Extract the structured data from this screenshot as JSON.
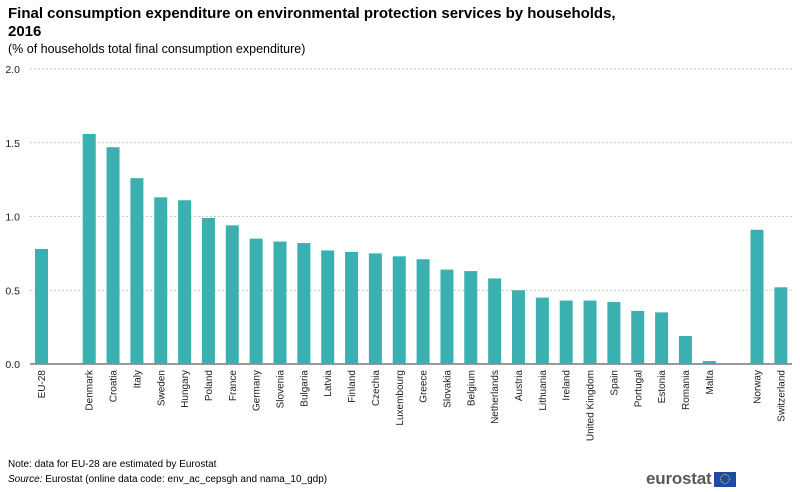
{
  "header": {
    "title": "Final consumption expenditure on environmental protection services by households, 2016",
    "subtitle": "(% of households  total final consumption  expenditure)"
  },
  "footer": {
    "note": "Note: data for EU-28 are estimated by Eurostat",
    "source_label": "Source:",
    "source_text": "Eurostat (online data code: env_ac_cepsgh and nama_10_gdp)"
  },
  "logo": {
    "text": "eurostat"
  },
  "chart_data": {
    "type": "bar",
    "title": "Final consumption expenditure on environmental protection services by households, 2016",
    "subtitle": "(% of households  total final consumption  expenditure)",
    "xlabel": "",
    "ylabel": "",
    "ylim": [
      0,
      2.0
    ],
    "yticks": [
      "0.0",
      "0.5",
      "1.0",
      "1.5",
      "2.0"
    ],
    "grid": true,
    "color": "#3ab0b0",
    "categories": [
      "EU-28",
      "Denmark",
      "Croatia",
      "Italy",
      "Sweden",
      "Hungary",
      "Poland",
      "France",
      "Germany",
      "Slovenia",
      "Bulgaria",
      "Latvia",
      "Finland",
      "Czechia",
      "Luxembourg",
      "Greece",
      "Slovakia",
      "Belgium",
      "Netherlands",
      "Austria",
      "Lithuania",
      "Ireland",
      "United Kingdom",
      "Spain",
      "Portugal",
      "Estonia",
      "Romania",
      "Malta",
      "Norway",
      "Switzerland"
    ],
    "values": [
      0.78,
      1.56,
      1.47,
      1.26,
      1.13,
      1.11,
      0.99,
      0.94,
      0.85,
      0.83,
      0.82,
      0.77,
      0.76,
      0.75,
      0.73,
      0.71,
      0.64,
      0.63,
      0.58,
      0.5,
      0.45,
      0.43,
      0.43,
      0.42,
      0.36,
      0.35,
      0.19,
      0.02,
      0.91,
      0.52
    ]
  }
}
